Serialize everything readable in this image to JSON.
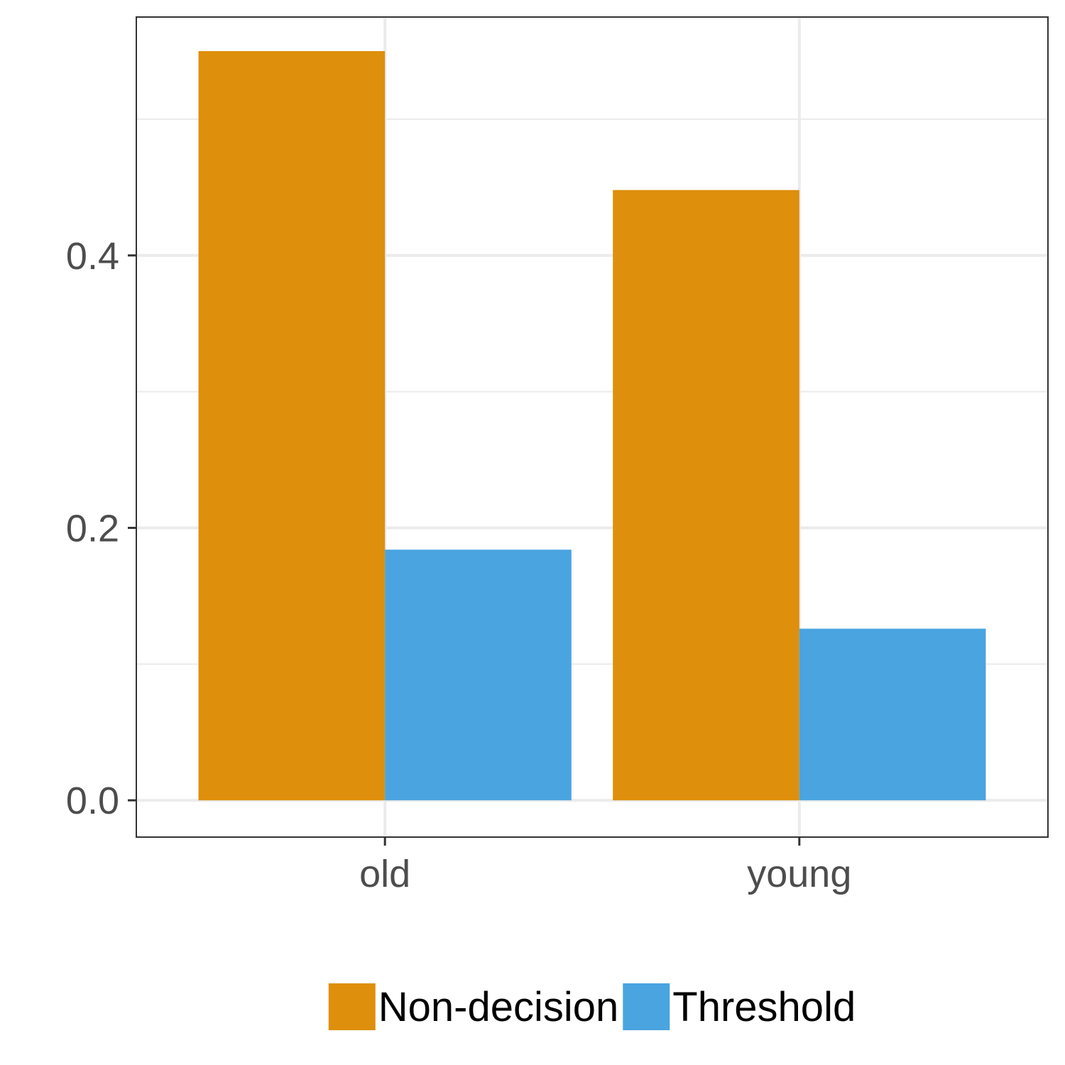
{
  "chart_data": {
    "type": "bar",
    "title": "",
    "xlabel": "",
    "ylabel": "",
    "categories": [
      "old",
      "young"
    ],
    "series": [
      {
        "name": "Non-decision",
        "color": "#DE8F0B",
        "values": [
          0.55,
          0.448
        ]
      },
      {
        "name": "Threshold",
        "color": "#4AA4E0",
        "values": [
          0.184,
          0.126
        ]
      }
    ],
    "ylim": [
      -0.027,
      0.575
    ],
    "yticks": [
      0.0,
      0.2,
      0.4
    ],
    "ytick_labels": [
      "0.0",
      "0.2",
      "0.4"
    ],
    "grid": true,
    "legend_position": "bottom"
  }
}
